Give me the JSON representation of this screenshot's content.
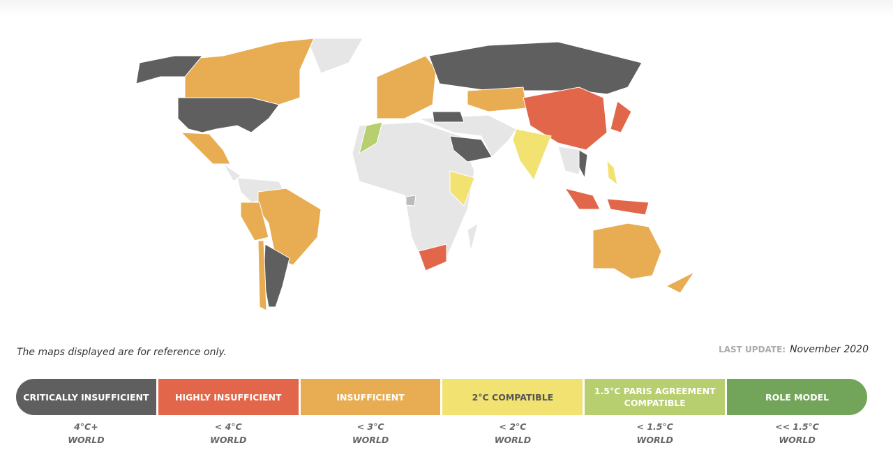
{
  "map": {
    "note": "The maps displayed are for reference only.",
    "last_update_label": "LAST UPDATE:",
    "last_update": "November 2020"
  },
  "legend": [
    {
      "label": "CRITICALLY INSUFFICIENT",
      "color": "#5f5f5f",
      "threshold": "4°C+",
      "scope": "WORLD"
    },
    {
      "label": "HIGHLY INSUFFICIENT",
      "color": "#e2674a",
      "threshold": "< 4°C",
      "scope": "WORLD"
    },
    {
      "label": "INSUFFICIENT",
      "color": "#e8ac52",
      "threshold": "< 3°C",
      "scope": "WORLD"
    },
    {
      "label": "2°C COMPATIBLE",
      "color": "#f1e272",
      "threshold": "< 2°C",
      "scope": "WORLD"
    },
    {
      "label": "1.5°C PARIS AGREEMENT COMPATIBLE",
      "color": "#b7cf6e",
      "threshold": "< 1.5°C",
      "scope": "WORLD"
    },
    {
      "label": "ROLE MODEL",
      "color": "#72a45a",
      "threshold": "<< 1.5°C",
      "scope": "WORLD"
    }
  ]
}
